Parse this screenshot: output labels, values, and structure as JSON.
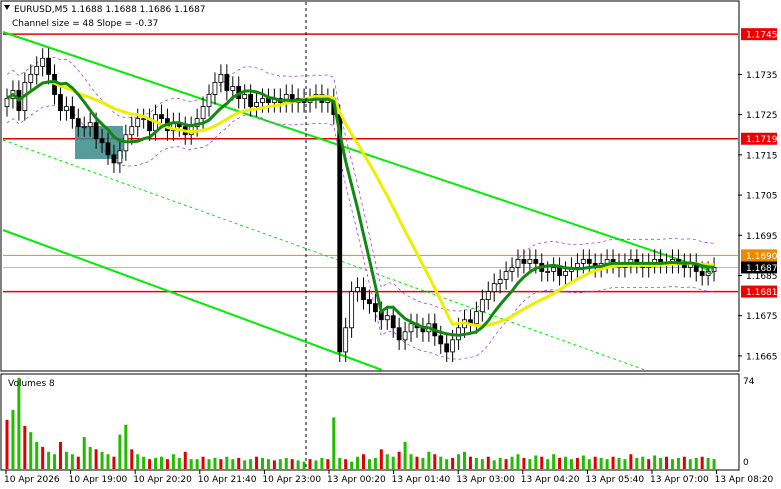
{
  "header": {
    "symbol_line": "EURUSD,M5  1.1688 1.1688 1.1686 1.1687",
    "indicator_line": "Channel size = 48 Slope = -0.37"
  },
  "volume_panel": {
    "title": "Volumes 8",
    "scale_max": "74",
    "scale_min": "0"
  },
  "colors": {
    "up_candle": "#000000",
    "down_candle": "#000000",
    "channel": "#00ee00",
    "sma_fast": "#118811",
    "sma_slow": "#eeee00",
    "level_line": "#ee0000",
    "bid_line": "#ee8800",
    "volume_bar": "#22bb00",
    "volume_bar_spike": "#dd0000",
    "highlight_box": "#3a8a88",
    "envelope": "#aa44dd"
  },
  "chart_data": {
    "type": "candlestick",
    "ylim": [
      1.16615,
      1.1753
    ],
    "price_ticks": [
      "1.1745",
      "1.1735",
      "1.1725",
      "1.1719",
      "1.1715",
      "1.1705",
      "1.1695",
      "1.1690",
      "1.1687",
      "1.1685",
      "1.1681",
      "1.1675",
      "1.1665"
    ],
    "level_lines": [
      {
        "label": "1.1745",
        "value": 1.1745
      },
      {
        "label": "1.1719",
        "value": 1.1719
      },
      {
        "label": "1.1681",
        "value": 1.1681
      }
    ],
    "bid_line": {
      "label": "1.1690",
      "value": 1.169
    },
    "current_price": {
      "label": "1.1687",
      "value": 1.1687
    },
    "time_labels": [
      "10 Apr 2026",
      "10 Apr 19:00",
      "10 Apr 20:20",
      "10 Apr 21:40",
      "10 Apr 23:00",
      "13 Apr 00:20",
      "13 Apr 01:40",
      "13 Apr 03:00",
      "13 Apr 04:20",
      "13 Apr 05:40",
      "13 Apr 07:00",
      "13 Apr 08:20"
    ],
    "candles_close": [
      1.1729,
      1.1731,
      1.1726,
      1.1733,
      1.1735,
      1.1737,
      1.1739,
      1.1735,
      1.173,
      1.1726,
      1.1727,
      1.1724,
      1.1722,
      1.1722,
      1.1723,
      1.1719,
      1.1718,
      1.1715,
      1.1713,
      1.1716,
      1.172,
      1.1722,
      1.1724,
      1.1724,
      1.1721,
      1.1725,
      1.1724,
      1.1721,
      1.1723,
      1.1722,
      1.172,
      1.1722,
      1.1724,
      1.1727,
      1.173,
      1.1733,
      1.1735,
      1.1731,
      1.1732,
      1.1729,
      1.173,
      1.1727,
      1.1728,
      1.1729,
      1.1728,
      1.1729,
      1.1728,
      1.173,
      1.1728,
      1.1729,
      1.1728,
      1.1729,
      1.173,
      1.1728,
      1.1729,
      1.1725,
      1.1666,
      1.1672,
      1.1681,
      1.1682,
      1.1679,
      1.1678,
      1.1676,
      1.1674,
      1.1675,
      1.1672,
      1.1669,
      1.1671,
      1.1673,
      1.1672,
      1.1671,
      1.1673,
      1.167,
      1.1668,
      1.1666,
      1.1669,
      1.1672,
      1.1674,
      1.1673,
      1.1676,
      1.1679,
      1.1681,
      1.1683,
      1.1684,
      1.1686,
      1.1687,
      1.1689,
      1.1688,
      1.1689,
      1.1688,
      1.1686,
      1.1686,
      1.1687,
      1.1685,
      1.1686,
      1.1687,
      1.1688,
      1.1689,
      1.1688,
      1.1687,
      1.1688,
      1.1689,
      1.1688,
      1.1687,
      1.1688,
      1.1689,
      1.1688,
      1.1687,
      1.1688,
      1.1689,
      1.1688,
      1.1688,
      1.1689,
      1.1688,
      1.1687,
      1.1688,
      1.1686,
      1.1685,
      1.1686,
      1.1687
    ],
    "volumes_ymax": 74,
    "volumes": [
      40,
      48,
      74,
      35,
      30,
      22,
      18,
      14,
      12,
      22,
      14,
      12,
      10,
      26,
      18,
      16,
      14,
      12,
      10,
      28,
      36,
      16,
      12,
      10,
      8,
      9,
      10,
      8,
      12,
      9,
      14,
      8,
      8,
      10,
      8,
      9,
      8,
      10,
      8,
      9,
      7,
      8,
      10,
      9,
      8,
      7,
      8,
      9,
      8,
      7,
      6,
      8,
      7,
      9,
      8,
      42,
      9,
      8,
      6,
      10,
      12,
      8,
      9,
      16,
      12,
      10,
      14,
      22,
      12,
      10,
      9,
      14,
      12,
      10,
      8,
      9,
      12,
      14,
      10,
      9,
      8,
      10,
      7,
      9,
      8,
      10,
      12,
      9,
      8,
      11,
      10,
      8,
      12,
      9,
      10,
      8,
      9,
      11,
      8,
      10,
      9,
      8,
      10,
      9,
      8,
      12,
      9,
      10,
      8,
      11,
      9,
      10,
      8,
      9,
      10,
      8,
      9,
      10,
      9,
      8
    ]
  }
}
